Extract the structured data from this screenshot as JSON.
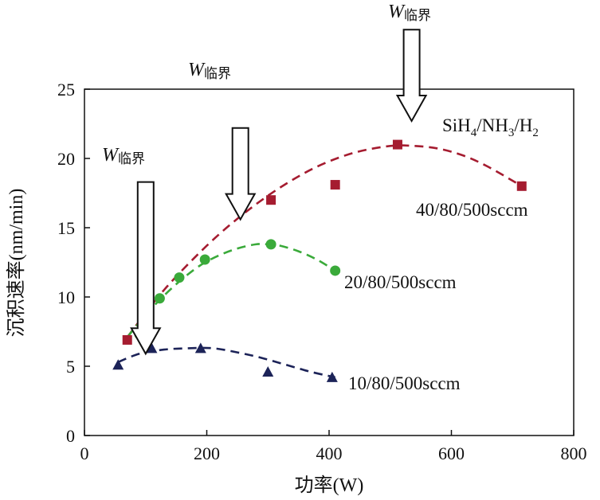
{
  "chart_data": {
    "type": "scatter",
    "title": "",
    "xlabel": "功率(W)",
    "ylabel": "沉积速率(nm/min)",
    "xlim": [
      0,
      800
    ],
    "ylim": [
      0,
      25
    ],
    "xticks": [
      0,
      200,
      400,
      600,
      800
    ],
    "yticks": [
      0,
      5,
      10,
      15,
      20,
      25
    ],
    "xtick_labels": [
      "0",
      "200",
      "400",
      "600",
      "800"
    ],
    "ytick_labels": [
      "0",
      "5",
      "10",
      "15",
      "20",
      "25"
    ],
    "gas_label": {
      "prefix": "SiH",
      "s1": "4",
      "mid": "/NH",
      "s2": "3",
      "mid2": "/H",
      "s3": "2"
    },
    "series": [
      {
        "name": "40/80/500sccm",
        "marker": "square",
        "color": "#a51c30",
        "x": [
          70,
          305,
          410,
          512,
          715
        ],
        "y": [
          6.9,
          17.0,
          18.1,
          21.0,
          18.0
        ],
        "fit_x": [
          70,
          130,
          200,
          260,
          320,
          380,
          440,
          500,
          540,
          580,
          620,
          660,
          715
        ],
        "fit_y": [
          7.1,
          10.5,
          13.7,
          16.0,
          17.9,
          19.4,
          20.4,
          20.9,
          20.9,
          20.7,
          20.2,
          19.4,
          18.0
        ]
      },
      {
        "name": "20/80/500sccm",
        "marker": "circle",
        "color": "#3aaa3a",
        "x": [
          90,
          123,
          155,
          197,
          305,
          410
        ],
        "y": [
          7.3,
          9.9,
          11.4,
          12.7,
          13.8,
          11.9
        ],
        "fit_x": [
          70,
          100,
          130,
          160,
          190,
          220,
          250,
          280,
          300,
          320,
          350,
          380,
          410
        ],
        "fit_y": [
          7.1,
          8.7,
          10.1,
          11.3,
          12.3,
          13.0,
          13.5,
          13.8,
          13.8,
          13.7,
          13.3,
          12.7,
          11.9
        ]
      },
      {
        "name": "10/80/500sccm",
        "marker": "triangle",
        "color": "#1c2358",
        "x": [
          55,
          110,
          190,
          300,
          405
        ],
        "y": [
          5.1,
          6.3,
          6.3,
          4.6,
          4.2
        ],
        "fit_x": [
          55,
          90,
          130,
          170,
          210,
          250,
          290,
          330,
          370,
          410
        ],
        "fit_y": [
          5.3,
          5.9,
          6.2,
          6.3,
          6.3,
          6.0,
          5.6,
          5.1,
          4.6,
          4.2
        ]
      }
    ],
    "annotations": [
      {
        "id": "w1",
        "label": "W",
        "sub": "临界",
        "arrow_x": 100,
        "arrow_top_y": 18.3,
        "arrow_tip_y": 5.9
      },
      {
        "id": "w2",
        "label": "W",
        "sub": "临界",
        "arrow_x": 255,
        "arrow_top_y": 22.2,
        "arrow_tip_y": 15.6
      },
      {
        "id": "w3",
        "label": "W",
        "sub": "临界",
        "arrow_x": 535,
        "arrow_top_y": 29.3,
        "arrow_tip_y": 22.7
      }
    ]
  }
}
